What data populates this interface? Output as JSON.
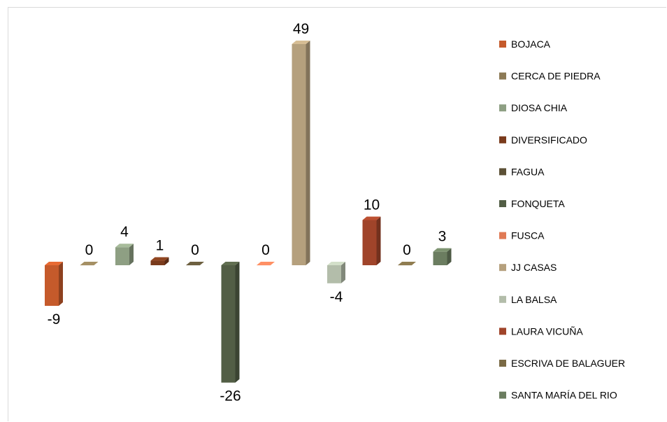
{
  "chart_data": {
    "type": "bar",
    "categories": [
      "BOJACA",
      "CERCA DE PIEDRA",
      "DIOSA CHIA",
      "DIVERSIFICADO",
      "FAGUA",
      "FONQUETA",
      "FUSCA",
      "JJ CASAS",
      "LA BALSA",
      "LAURA VICUÑA",
      "ESCRIVA DE BALAGUER",
      "SANTA MARÍA DEL RIO"
    ],
    "values": [
      -9,
      0,
      4,
      1,
      0,
      -26,
      0,
      49,
      -4,
      10,
      0,
      3
    ],
    "data_labels": [
      "-9",
      "0",
      "4",
      "1",
      "0",
      "-26",
      "0",
      "49",
      "-4",
      "10",
      "0",
      "3"
    ],
    "colors": [
      "#c55a2b",
      "#8c7a55",
      "#8e9f83",
      "#7a3b1c",
      "#5c5136",
      "#525e45",
      "#e07a55",
      "#b5a07d",
      "#b3bdaa",
      "#a0442a",
      "#7a6a45",
      "#6b7d60"
    ],
    "legend": {
      "position": "right",
      "entries": [
        "BOJACA",
        "CERCA DE PIEDRA",
        "DIOSA CHIA",
        "DIVERSIFICADO",
        "FAGUA",
        "FONQUETA",
        "FUSCA",
        "JJ CASAS",
        "LA BALSA",
        "LAURA VICUÑA",
        "ESCRIVA DE BALAGUER",
        "SANTA MARÍA DEL RIO"
      ]
    },
    "style": "3d-column",
    "grid": false,
    "axes_visible": false
  }
}
